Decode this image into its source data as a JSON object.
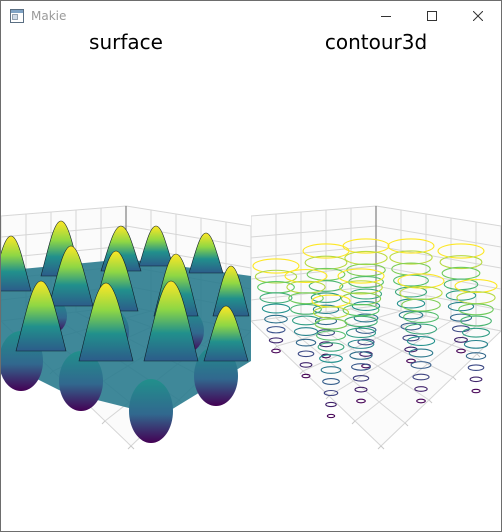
{
  "window": {
    "title": "Makie",
    "icon": "app-window-icon",
    "controls": [
      "minimize-icon",
      "maximize-icon",
      "close-icon"
    ]
  },
  "plots": [
    {
      "title": "surface",
      "kind": "surface"
    },
    {
      "title": "contour3d",
      "kind": "contour3d"
    }
  ],
  "colors": {
    "viridis": [
      "#440154",
      "#3b528b",
      "#21908c",
      "#5dc863",
      "#fde725"
    ],
    "grid": "#d6d6d6",
    "axis": "#808080"
  }
}
